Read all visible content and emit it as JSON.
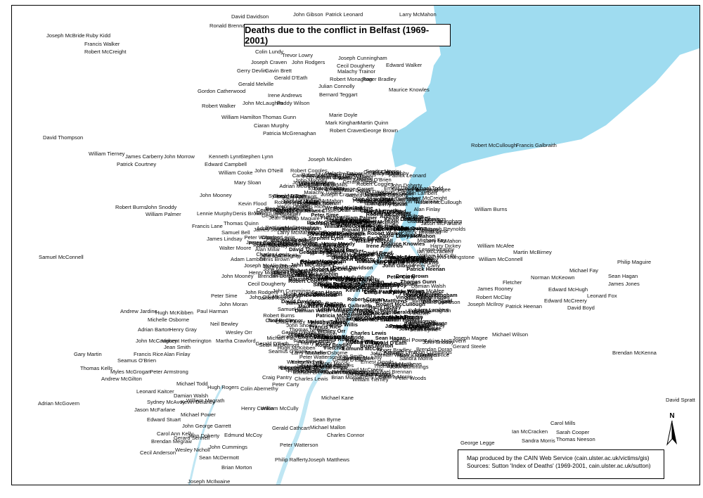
{
  "map": {
    "title": "Deaths due to the conflict in Belfast (1969-2001)",
    "credit_line1": "Map produced by the CAIN Web Service (cain.ulster.ac.uk/victims/gis)",
    "credit_line2": "Sources: Sutton 'Index of Deaths' (1969-2001, cain.ulster.ac.uk/sutton)",
    "north_label": "N",
    "colors": {
      "water": "#9fdcf0",
      "river": "#bfe6f3",
      "text": "#111111",
      "border": "#000000"
    }
  },
  "labels": [
    "David Davidson",
    "John Gibson",
    "Patrick Leonard",
    "Larry McMahon",
    "Ronald Brennan",
    "Joseph McBride",
    "Ruby Kidd",
    "Francis Walker",
    "Robert McCreight",
    "Colin Lundy",
    "Trevor Lowry",
    "Joseph Craven",
    "John Rodgers",
    "Joseph Cunningham",
    "Cecil Dougherty",
    "Edward Walker",
    "Gerry Devlin",
    "Gavin Brett",
    "Gerald D'Eath",
    "Malachy Trainor",
    "Robert Monaghan",
    "Roger Bradley",
    "Gerald Melville",
    "Julian Connolly",
    "Maurice Knowles",
    "Gordon Catherwood",
    "Irene Andrews",
    "Bernard Teggart",
    "John McLaughlin",
    "Paddy Wilson",
    "Robert Walker",
    "William Hamilton",
    "Thomas Gunn",
    "Marie Doyle",
    "Ciaran Murphy",
    "Mark Kinghan",
    "Martin Quinn",
    "Patricia McGrenaghan",
    "Robert Craven",
    "George Brown",
    "David Thompson",
    "Robert McCullough",
    "Francis Galbraith",
    "William Tierney",
    "James Carberry",
    "John Morrow",
    "Kenneth Lynn",
    "Stephen Lynn",
    "Joseph McAlinden",
    "Patrick Courtney",
    "Edward Campbell",
    "William Cooke",
    "John O'Neill",
    "Robert Coggles",
    "Peter Woods",
    "Mary Sloan",
    "John Mooney",
    "Kevin Flood",
    "Robert Burns",
    "John Snoddy",
    "William Palmer",
    "Lennie Murphy",
    "Denis Brown",
    "William Burns",
    "Francis Lane",
    "Thomas Quinn",
    "Samuel Bell",
    "Joseph Reynolds",
    "Patrick Benstead",
    "James Lindsay",
    "Harry Dickey",
    "William McAfee",
    "Walter Moore",
    "Alan Millar",
    "Martin McBirney",
    "Samuel McConnell",
    "David Livingstone",
    "William McConnell",
    "Philip Maguire",
    "Adam Lambert",
    "Michael Fay",
    "Norman McKeown",
    "Sean Hagan",
    "John Mooney",
    "James Jones",
    "Fletcher",
    "Edward McHugh",
    "James Rooney",
    "Leonard Fox",
    "Peter Sime",
    "Robert McClay",
    "Edward McCreery",
    "John Moran",
    "Joseph McIlroy",
    "Patrick Heenan",
    "David Boyd",
    "Andrew Jardine",
    "Hugh McKibben",
    "Paul Harman",
    "Michelle Osborne",
    "Neil Bewley",
    "Adrian Barton",
    "Henry Gray",
    "Wesley Orr",
    "David Galway",
    "Gerard Steele",
    "Michael Wilson",
    "John McCaughey",
    "Vincent Hetherington",
    "Martha Crawford",
    "Joseph Magee",
    "Brendan McKenna",
    "Jean Smith",
    "Brendan Doran",
    "Gary Martin",
    "Francis Rice",
    "Alan Finlay",
    "Patrick Murphy",
    "Seamus O'Brien",
    "Henry Moody",
    "Ernest Dowds",
    "James Willis",
    "Thomas Kells",
    "Myles McGrogan",
    "Peter Armstrong",
    "James Gibson",
    "Michael Brennan",
    "Andrew McGilton",
    "Craig Pantry",
    "Peter Carty",
    "Charles Lewis",
    "Hugh Rogers",
    "Colin Abernethy",
    "Michael Todd",
    "Leonard Kaitcer",
    "Damian Walsh",
    "William Megrath",
    "Sydney McAvoy",
    "Kevin Delaney",
    "Michael Kane",
    "Adrian McGovern",
    "David Spratt",
    "Jason McFarlane",
    "Henry Conlon",
    "William McCully",
    "Michael Power",
    "Edward Stuart",
    "Sean Byrne",
    "John George Garrett",
    "Gerald Cathcart",
    "Michael Mallon",
    "Carol Mills",
    "Ian McCracken",
    "Sarah Cooper",
    "Carol Ann Kelly",
    "John Doherty",
    "Edmund McCoy",
    "Charles Connor",
    "Gerard Sennell",
    "George Legge",
    "Sandra Morris",
    "Thomas Neeson",
    "Brendan Megraw",
    "Peter Watterson",
    "Cecil Anderson",
    "Wesley Nicholl",
    "John Cummings",
    "Sean McDermott",
    "Philip Rafferty",
    "Joseph Matthews",
    "Brian Morton",
    "Joseph McIlwaine"
  ]
}
